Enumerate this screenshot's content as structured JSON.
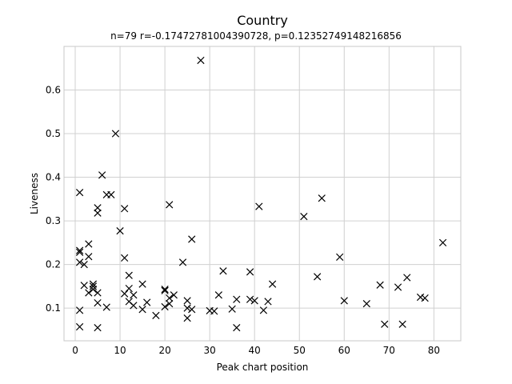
{
  "chart_data": {
    "type": "scatter",
    "title": "Country",
    "subtitle": "n=79 r=-0.17472781004390728, p=0.12352749148216856",
    "xlabel": "Peak chart position",
    "ylabel": "Liveness",
    "xlim": [
      -2.5,
      86
    ],
    "ylim": [
      0.025,
      0.7
    ],
    "xticks": [
      0,
      10,
      20,
      30,
      40,
      50,
      60,
      70,
      80
    ],
    "yticks": [
      0.1,
      0.2,
      0.3,
      0.4,
      0.5,
      0.6
    ],
    "grid": true,
    "marker": "x",
    "marker_color": "#000000",
    "points": [
      [
        1,
        0.365
      ],
      [
        1,
        0.232
      ],
      [
        1,
        0.228
      ],
      [
        1,
        0.205
      ],
      [
        1,
        0.095
      ],
      [
        1,
        0.057
      ],
      [
        2,
        0.2
      ],
      [
        2,
        0.152
      ],
      [
        3,
        0.247
      ],
      [
        3,
        0.218
      ],
      [
        3,
        0.135
      ],
      [
        4,
        0.155
      ],
      [
        4,
        0.15
      ],
      [
        4,
        0.143
      ],
      [
        5,
        0.33
      ],
      [
        5,
        0.318
      ],
      [
        5,
        0.135
      ],
      [
        5,
        0.112
      ],
      [
        5,
        0.055
      ],
      [
        6,
        0.405
      ],
      [
        7,
        0.36
      ],
      [
        7,
        0.102
      ],
      [
        8,
        0.36
      ],
      [
        9,
        0.5
      ],
      [
        10,
        0.277
      ],
      [
        11,
        0.328
      ],
      [
        11,
        0.215
      ],
      [
        11,
        0.133
      ],
      [
        12,
        0.175
      ],
      [
        12,
        0.145
      ],
      [
        12,
        0.115
      ],
      [
        13,
        0.13
      ],
      [
        13,
        0.106
      ],
      [
        15,
        0.155
      ],
      [
        15,
        0.097
      ],
      [
        16,
        0.113
      ],
      [
        18,
        0.083
      ],
      [
        20,
        0.143
      ],
      [
        20,
        0.14
      ],
      [
        20,
        0.103
      ],
      [
        21,
        0.337
      ],
      [
        21,
        0.123
      ],
      [
        21,
        0.11
      ],
      [
        22,
        0.13
      ],
      [
        24,
        0.205
      ],
      [
        25,
        0.117
      ],
      [
        25,
        0.1
      ],
      [
        25,
        0.077
      ],
      [
        26,
        0.258
      ],
      [
        26,
        0.097
      ],
      [
        28,
        0.668
      ],
      [
        30,
        0.094
      ],
      [
        31,
        0.093
      ],
      [
        32,
        0.13
      ],
      [
        33,
        0.185
      ],
      [
        35,
        0.098
      ],
      [
        36,
        0.12
      ],
      [
        36,
        0.055
      ],
      [
        39,
        0.183
      ],
      [
        39,
        0.12
      ],
      [
        40,
        0.117
      ],
      [
        41,
        0.333
      ],
      [
        42,
        0.095
      ],
      [
        43,
        0.115
      ],
      [
        44,
        0.155
      ],
      [
        51,
        0.31
      ],
      [
        54,
        0.172
      ],
      [
        55,
        0.352
      ],
      [
        59,
        0.217
      ],
      [
        60,
        0.117
      ],
      [
        65,
        0.11
      ],
      [
        68,
        0.153
      ],
      [
        69,
        0.063
      ],
      [
        72,
        0.148
      ],
      [
        73,
        0.063
      ],
      [
        74,
        0.17
      ],
      [
        77,
        0.125
      ],
      [
        78,
        0.123
      ],
      [
        82,
        0.25
      ]
    ]
  }
}
